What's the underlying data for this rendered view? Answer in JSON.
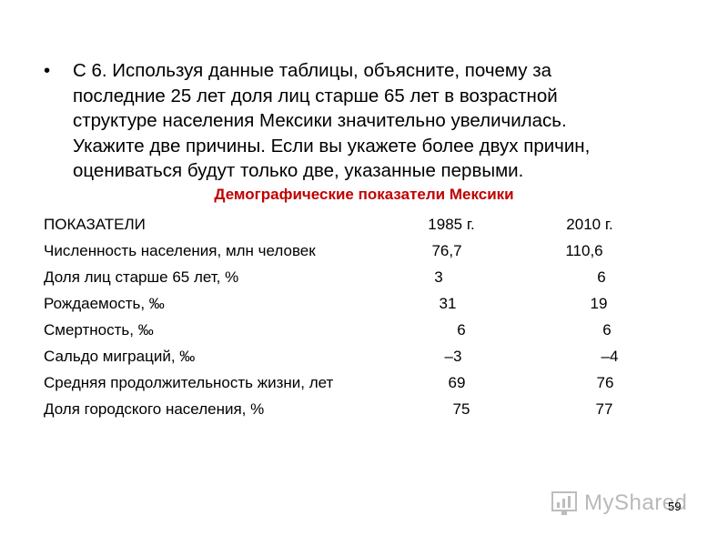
{
  "question": {
    "bullet": "•",
    "text": "С 6. Используя данные таблицы, объясните, почему за\nпоследние 25 лет доля лиц старше 65  лет в возрастной\nструктуре населения Мексики значительно увеличилась.\nУкажите две причины.  Если вы укажете более двух причин,\nоцениваться будут только две, указанные первыми."
  },
  "table": {
    "title": "Демографические показатели Мексики",
    "header": {
      "label": "ПОКАЗАТЕЛИ",
      "col1": "1985 г.",
      "col2": "2010 г."
    },
    "rows": [
      {
        "label": "Численность населения, млн человек",
        "v1": "76,7",
        "v2": "110,6"
      },
      {
        "label": "Доля лиц старше 65 лет, %",
        "v1": "3",
        "v2": "6"
      },
      {
        "label": "Рождаемость, ‰",
        "v1": "31",
        "v2": "19"
      },
      {
        "label": "Смертность, ‰",
        "v1": "6",
        "v2": "6"
      },
      {
        "label": "Сальдо миграций, ‰",
        "v1": "–3",
        "v2": "–4"
      },
      {
        "label": "Средняя продолжительность жизни, лет",
        "v1": "69",
        "v2": "76"
      },
      {
        "label": "Доля городского населения, %",
        "v1": "75",
        "v2": "77"
      }
    ]
  },
  "watermark": {
    "text": "MyShared",
    "icon": "bar-chart-icon"
  },
  "page_number": "59"
}
